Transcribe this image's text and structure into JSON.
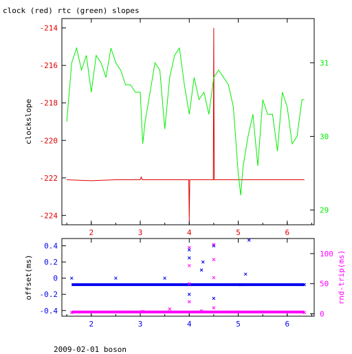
{
  "header": {
    "title": "clock (red) rtc (green) slopes"
  },
  "footer": {
    "caption": "2009-02-01 boson"
  },
  "colors": {
    "red": "#e00000",
    "green": "#00ee00",
    "blue": "#0000ee",
    "magenta": "#ff00ff",
    "black": "#000000"
  },
  "chart_data": [
    {
      "type": "line",
      "xlim": [
        1.4,
        6.55
      ],
      "xticks": [
        2,
        3,
        4,
        5,
        6
      ],
      "xtick_labels": [
        "2",
        "3",
        "4",
        "5",
        "6"
      ],
      "ylabel_left": "clockslope",
      "ylim_left": [
        -224.5,
        -213.5
      ],
      "yticks_left": [
        -214,
        -216,
        -218,
        -220,
        -222,
        -224
      ],
      "ytick_labels_left": [
        "-214",
        "-216",
        "-218",
        "-220",
        "-222",
        "-224"
      ],
      "ylim_right": [
        28.8,
        31.6
      ],
      "yticks_right": [
        29,
        30,
        31
      ],
      "ytick_labels_right": [
        "29",
        "30",
        "31"
      ],
      "series": [
        {
          "name": "clock",
          "color": "red",
          "axis": "left",
          "x": [
            1.5,
            2.0,
            2.5,
            3.0,
            3.02,
            3.04,
            3.5,
            3.99,
            4.0,
            4.01,
            4.49,
            4.5,
            4.51,
            5.0,
            5.5,
            6.0,
            6.35
          ],
          "y": [
            -222.1,
            -222.15,
            -222.1,
            -222.1,
            -221.95,
            -222.1,
            -222.1,
            -222.1,
            -224.3,
            -222.1,
            -222.1,
            -214.0,
            -222.1,
            -222.1,
            -222.1,
            -222.1,
            -222.1
          ]
        },
        {
          "name": "rtc",
          "color": "green",
          "axis": "right",
          "x": [
            1.5,
            1.6,
            1.7,
            1.8,
            1.9,
            2.0,
            2.1,
            2.2,
            2.3,
            2.4,
            2.5,
            2.6,
            2.7,
            2.8,
            2.9,
            3.0,
            3.05,
            3.1,
            3.2,
            3.3,
            3.4,
            3.5,
            3.6,
            3.7,
            3.8,
            3.9,
            4.0,
            4.1,
            4.2,
            4.3,
            4.4,
            4.5,
            4.6,
            4.7,
            4.8,
            4.9,
            5.0,
            5.05,
            5.1,
            5.2,
            5.3,
            5.4,
            5.5,
            5.6,
            5.7,
            5.8,
            5.9,
            6.0,
            6.1,
            6.2,
            6.3,
            6.35
          ],
          "y": [
            30.2,
            31.0,
            31.2,
            30.9,
            31.1,
            30.6,
            31.1,
            31.0,
            30.8,
            31.2,
            31.0,
            30.9,
            30.7,
            30.7,
            30.6,
            30.6,
            29.9,
            30.2,
            30.6,
            31.0,
            30.9,
            30.1,
            30.8,
            31.1,
            31.2,
            30.7,
            30.3,
            30.8,
            30.5,
            30.6,
            30.3,
            30.8,
            30.9,
            30.8,
            30.7,
            30.4,
            29.5,
            29.2,
            29.6,
            30.0,
            30.3,
            29.6,
            30.5,
            30.3,
            30.3,
            29.8,
            30.6,
            30.4,
            29.9,
            30.0,
            30.5,
            30.5
          ]
        }
      ]
    },
    {
      "type": "scatter",
      "xlim": [
        1.4,
        6.55
      ],
      "xticks": [
        2,
        3,
        4,
        5,
        6
      ],
      "xtick_labels": [
        "2",
        "3",
        "4",
        "5",
        "6"
      ],
      "ylabel_left": "offset(ms)",
      "ylim_left": [
        -0.47,
        0.49
      ],
      "yticks_left": [
        0.4,
        0.2,
        0,
        -0.2,
        -0.4
      ],
      "ytick_labels_left": [
        "0.4",
        "0.2",
        "0",
        "-0.2",
        "-0.4"
      ],
      "ylabel_right": "rnd-trip(ms)",
      "ylim_right": [
        -4,
        125
      ],
      "yticks_right": [
        0,
        50,
        100
      ],
      "ytick_labels_right": [
        "0",
        "50",
        "100"
      ],
      "series": [
        {
          "name": "offset",
          "color": "blue",
          "axis": "left",
          "x": [
            1.6,
            2.5,
            3.5,
            4.0,
            4.0,
            4.0,
            4.25,
            4.28,
            4.5,
            4.5,
            5.05,
            5.15,
            5.22,
            6.35
          ],
          "y": [
            0.0,
            0.0,
            0.0,
            0.35,
            0.25,
            -0.2,
            0.1,
            0.2,
            0.4,
            -0.25,
            -0.08,
            0.05,
            0.47,
            -0.08
          ]
        },
        {
          "name": "rnd-trip",
          "color": "magenta",
          "axis": "right",
          "x": [
            1.6,
            2.6,
            3.05,
            3.6,
            4.0,
            4.0,
            4.0,
            4.0,
            4.25,
            4.5,
            4.5,
            4.5,
            4.5,
            5.0,
            5.5,
            6.35
          ],
          "y": [
            2,
            3,
            4,
            8,
            20,
            50,
            80,
            110,
            5,
            60,
            90,
            115,
            10,
            3,
            3,
            2
          ]
        }
      ]
    }
  ]
}
